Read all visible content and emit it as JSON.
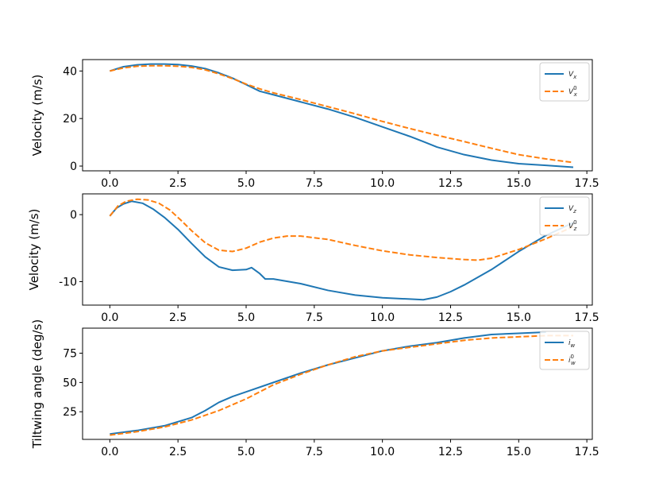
{
  "chart_data": [
    {
      "type": "line",
      "xlabel": "",
      "ylabel": "Velocity (m/s)",
      "xlim": [
        -1.0,
        17.7
      ],
      "ylim": [
        -2,
        44.8
      ],
      "xticks": [
        0.0,
        2.5,
        5.0,
        7.5,
        10.0,
        12.5,
        15.0,
        17.5
      ],
      "xtick_labels": [
        "0.0",
        "2.5",
        "5.0",
        "7.5",
        "10.0",
        "12.5",
        "15.0",
        "17.5"
      ],
      "yticks": [
        0,
        20,
        40
      ],
      "ytick_labels": [
        "0",
        "20",
        "40"
      ],
      "legend_position": "top-right",
      "series": [
        {
          "name": "V_x",
          "name_main": "V",
          "name_sub": "x",
          "name_sup": "",
          "color": "#1f77b4",
          "style": "solid",
          "x": [
            0,
            0.5,
            1,
            1.5,
            2,
            2.5,
            3,
            3.5,
            4,
            4.5,
            5,
            5.5,
            6,
            7,
            8,
            9,
            10,
            11,
            11.5,
            12,
            13,
            14,
            15,
            16,
            17
          ],
          "y": [
            40,
            41.8,
            42.6,
            42.9,
            42.9,
            42.7,
            42.1,
            41,
            39.2,
            37,
            34.3,
            31.5,
            30,
            27,
            24,
            20.5,
            16.5,
            12.5,
            10.3,
            8,
            4.8,
            2.5,
            1,
            0.3,
            -0.5
          ]
        },
        {
          "name": "V_x^0",
          "name_main": "V",
          "name_sub": "x",
          "name_sup": "0",
          "color": "#ff7f0e",
          "style": "dashed",
          "x": [
            0,
            0.5,
            1,
            1.5,
            2,
            2.5,
            3,
            3.5,
            4,
            4.5,
            5,
            5.5,
            6,
            7,
            8,
            9,
            10,
            11,
            12,
            13,
            14,
            15,
            16,
            17
          ],
          "y": [
            40,
            41.3,
            42,
            42.2,
            42.2,
            42,
            41.5,
            40.5,
            38.8,
            36.8,
            34.5,
            32.5,
            30.8,
            28,
            25,
            22,
            18.8,
            15.8,
            13,
            10.3,
            7.5,
            4.8,
            3,
            1.5
          ]
        }
      ]
    },
    {
      "type": "line",
      "xlabel": "",
      "ylabel": "Velocity (m/s)",
      "xlim": [
        -1.0,
        17.7
      ],
      "ylim": [
        -13.5,
        3.1
      ],
      "xticks": [
        0.0,
        2.5,
        5.0,
        7.5,
        10.0,
        12.5,
        15.0,
        17.5
      ],
      "xtick_labels": [
        "0.0",
        "2.5",
        "5.0",
        "7.5",
        "10.0",
        "12.5",
        "15.0",
        "17.5"
      ],
      "yticks": [
        0,
        -10
      ],
      "ytick_labels": [
        "0",
        "-10"
      ],
      "legend_position": "top-right",
      "series": [
        {
          "name": "V_z",
          "name_main": "V",
          "name_sub": "z",
          "name_sup": "",
          "color": "#1f77b4",
          "style": "solid",
          "x": [
            0,
            0.25,
            0.5,
            0.8,
            1.2,
            1.6,
            2,
            2.5,
            3,
            3.5,
            4,
            4.5,
            5,
            5.2,
            5.5,
            5.7,
            6,
            7,
            8,
            9,
            10,
            11,
            11.5,
            12,
            12.5,
            13,
            14,
            15,
            16,
            17
          ],
          "y": [
            -0.2,
            1,
            1.6,
            2,
            1.7,
            0.8,
            -0.4,
            -2.2,
            -4.3,
            -6.3,
            -7.8,
            -8.3,
            -8.2,
            -7.9,
            -8.8,
            -9.6,
            -9.6,
            -10.3,
            -11.3,
            -12,
            -12.4,
            -12.6,
            -12.7,
            -12.3,
            -11.5,
            -10.5,
            -8.2,
            -5.5,
            -3.1,
            -1.2
          ]
        },
        {
          "name": "V_z^0",
          "name_main": "V",
          "name_sub": "z",
          "name_sup": "0",
          "color": "#ff7f0e",
          "style": "dashed",
          "x": [
            0,
            0.3,
            0.6,
            1,
            1.4,
            1.8,
            2.2,
            2.6,
            3,
            3.5,
            4,
            4.5,
            5,
            5.5,
            6,
            6.5,
            7,
            8,
            9,
            10,
            11,
            12,
            13,
            13.5,
            14,
            15,
            16,
            17
          ],
          "y": [
            -0.2,
            1.3,
            2,
            2.3,
            2.2,
            1.7,
            0.7,
            -0.8,
            -2.4,
            -4.2,
            -5.3,
            -5.5,
            -5,
            -4.1,
            -3.5,
            -3.2,
            -3.2,
            -3.7,
            -4.6,
            -5.4,
            -6,
            -6.4,
            -6.7,
            -6.8,
            -6.5,
            -5.2,
            -3.6,
            -1.8
          ]
        }
      ]
    },
    {
      "type": "line",
      "xlabel": "",
      "ylabel": "Tiltwing angle (deg/s)",
      "xlim": [
        -1.0,
        17.7
      ],
      "ylim": [
        1.4,
        96.4
      ],
      "xticks": [
        0.0,
        2.5,
        5.0,
        7.5,
        10.0,
        12.5,
        15.0,
        17.5
      ],
      "xtick_labels": [
        "0.0",
        "2.5",
        "5.0",
        "7.5",
        "10.0",
        "12.5",
        "15.0",
        "17.5"
      ],
      "yticks": [
        25,
        50,
        75
      ],
      "ytick_labels": [
        "25",
        "50",
        "75"
      ],
      "legend_position": "top-right",
      "series": [
        {
          "name": "i_w",
          "name_main": "i",
          "name_sub": "w",
          "name_sup": "",
          "color": "#1f77b4",
          "style": "solid",
          "x": [
            0,
            1,
            2,
            3,
            3.5,
            4,
            4.5,
            5,
            6,
            7,
            8,
            9,
            10,
            11,
            12,
            13,
            14,
            15,
            16
          ],
          "y": [
            6,
            9,
            13,
            20,
            26,
            33,
            38,
            42,
            50,
            58,
            65,
            71,
            77,
            81,
            84,
            88,
            91,
            92,
            93
          ]
        },
        {
          "name": "i_w^0",
          "name_main": "i",
          "name_sub": "w",
          "name_sup": "0",
          "color": "#ff7f0e",
          "style": "dashed",
          "x": [
            0,
            1,
            2,
            3,
            4,
            5,
            6,
            7,
            8,
            9,
            10,
            11,
            12,
            13,
            14,
            15,
            16,
            17
          ],
          "y": [
            5,
            8,
            12,
            18,
            26,
            36,
            48,
            57,
            65,
            72,
            77,
            80,
            83,
            86,
            88,
            89,
            90,
            90
          ]
        }
      ]
    }
  ]
}
